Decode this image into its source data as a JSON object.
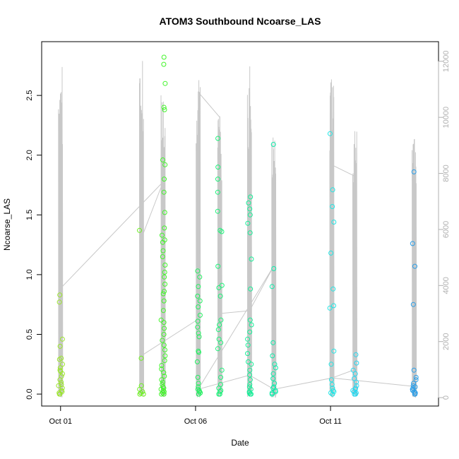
{
  "chart_data": {
    "type": "scatter",
    "title": "ATOM3 Southbound Ncoarse_LAS",
    "xlabel": "Date",
    "ylabel": "Ncoarse_LAS",
    "x_tick_labels": [
      "Oct 01",
      "Oct 06",
      "Oct 11"
    ],
    "x_ticks_day": [
      1,
      6,
      11
    ],
    "xlim_day": [
      0.3,
      15.0
    ],
    "ylim": [
      -0.1,
      2.95
    ],
    "y_ticks": [
      0.0,
      0.5,
      1.0,
      1.5,
      2.0,
      2.5
    ],
    "y_tick_labels": [
      "0.0",
      "0.5",
      "1.0",
      "1.5",
      "2.0",
      "2.5"
    ],
    "y2lim": [
      -300,
      12700
    ],
    "y2_ticks": [
      0,
      2000,
      4000,
      6000,
      8000,
      10000,
      12000
    ],
    "y2_tick_labels": [
      "0",
      "2000",
      "4000",
      "6000",
      "8000",
      "10000",
      "12000"
    ],
    "right_axis_color": "#b0b0b0",
    "grid": false,
    "colors": {
      "marker_scale": "time-colored hue from yellow-green to blue",
      "secondary_line": "#c8c8c8"
    },
    "marker_series": [
      {
        "day": 1.0,
        "color": "#9be62b",
        "values": [
          0.83,
          0.77,
          0.46,
          0.4,
          0.3,
          0.29,
          0.25,
          0.22,
          0.2,
          0.19,
          0.17,
          0.15,
          0.12,
          0.1,
          0.08,
          0.07,
          0.05,
          0.03,
          0.02,
          0.01,
          0.0,
          0.0
        ]
      },
      {
        "day": 4.0,
        "color": "#6cf01f",
        "values": [
          1.37,
          0.3,
          0.07,
          0.04,
          0.02,
          0.01,
          0.0,
          0.0
        ]
      },
      {
        "day": 4.8,
        "color": "#42f52a",
        "values": [
          2.82,
          2.76,
          2.6,
          2.4,
          2.38,
          1.96,
          1.92,
          1.8,
          1.69,
          1.52,
          1.39,
          1.33,
          1.29,
          1.27,
          1.2,
          1.15,
          1.08,
          1.02,
          0.98,
          0.92,
          0.86,
          0.84,
          0.78,
          0.7,
          0.62,
          0.6,
          0.55,
          0.5,
          0.45,
          0.41,
          0.37,
          0.32,
          0.28,
          0.24,
          0.21,
          0.18,
          0.15,
          0.12,
          0.1,
          0.08,
          0.06,
          0.05,
          0.04,
          0.03,
          0.02,
          0.01,
          0.0,
          0.0
        ]
      },
      {
        "day": 6.1,
        "color": "#22f060",
        "values": [
          1.03,
          0.98,
          0.9,
          0.82,
          0.78,
          0.73,
          0.66,
          0.61,
          0.56,
          0.51,
          0.48,
          0.36,
          0.35,
          0.27,
          0.14,
          0.09,
          0.06,
          0.04,
          0.03,
          0.02,
          0.01,
          0.0,
          0.0
        ]
      },
      {
        "day": 6.9,
        "color": "#1ef27a",
        "values": [
          2.14,
          1.9,
          1.8,
          1.69,
          1.53,
          1.37,
          1.36,
          1.07,
          0.91,
          0.89,
          0.82,
          0.62,
          0.58,
          0.54,
          0.46,
          0.43,
          0.38,
          0.2,
          0.14,
          0.08,
          0.05,
          0.03,
          0.02,
          0.0,
          0.0
        ]
      },
      {
        "day": 8.0,
        "color": "#15ef98",
        "values": [
          1.65,
          1.6,
          1.55,
          1.5,
          1.43,
          1.35,
          1.13,
          0.88,
          0.62,
          0.58,
          0.52,
          0.46,
          0.41,
          0.34,
          0.27,
          0.25,
          0.2,
          0.16,
          0.12,
          0.08,
          0.06,
          0.04,
          0.02,
          0.01,
          0.0,
          0.0
        ]
      },
      {
        "day": 8.9,
        "color": "#10ecab",
        "values": [
          2.09,
          1.05,
          0.9,
          0.43,
          0.32,
          0.25,
          0.22,
          0.17,
          0.13,
          0.09,
          0.06,
          0.05,
          0.03,
          0.02,
          0.01,
          0.0,
          0.0
        ]
      },
      {
        "day": 11.05,
        "color": "#22e6e6",
        "values": [
          2.18,
          1.71,
          1.57,
          1.44,
          1.18,
          0.88,
          0.74,
          0.72,
          0.36,
          0.25,
          0.12,
          0.08,
          0.05,
          0.03,
          0.02,
          0.01,
          0.0,
          0.0
        ]
      },
      {
        "day": 11.9,
        "color": "#28d8f0",
        "values": [
          0.33,
          0.26,
          0.2,
          0.17,
          0.13,
          0.1,
          0.07,
          0.05,
          0.04,
          0.03,
          0.02,
          0.01,
          0.0,
          0.0
        ]
      },
      {
        "day": 14.1,
        "color": "#2a9ee8",
        "values": [
          1.86,
          1.26,
          1.07,
          0.75,
          0.2,
          0.14,
          0.12,
          0.09,
          0.07,
          0.06,
          0.05,
          0.04,
          0.03,
          0.02,
          0.01,
          0.0,
          0.0
        ]
      }
    ],
    "secondary_series": {
      "name": "",
      "axis": "right",
      "bursts": [
        {
          "day": 1.0,
          "peak": 12000
        },
        {
          "day": 4.0,
          "peak": 12150
        },
        {
          "day": 4.8,
          "peak": 10900
        },
        {
          "day": 6.1,
          "peak": 11700
        },
        {
          "day": 6.9,
          "peak": 10600
        },
        {
          "day": 8.0,
          "peak": 11900
        },
        {
          "day": 8.9,
          "peak": 9300
        },
        {
          "day": 11.05,
          "peak": 11600
        },
        {
          "day": 11.9,
          "peak": 9600
        },
        {
          "day": 14.1,
          "peak": 9900
        }
      ],
      "connector_points": [
        {
          "day": 1.0,
          "value": 3900
        },
        {
          "day": 4.8,
          "value": 7700
        },
        {
          "day": 4.0,
          "value": 5700
        },
        {
          "day": 4.0,
          "value": 1500
        },
        {
          "day": 6.1,
          "value": 2800
        },
        {
          "day": 6.1,
          "value": 10900
        },
        {
          "day": 6.9,
          "value": 10000
        },
        {
          "day": 6.9,
          "value": 3000
        },
        {
          "day": 8.0,
          "value": 3100
        },
        {
          "day": 8.9,
          "value": 4700
        },
        {
          "day": 6.1,
          "value": 300
        },
        {
          "day": 8.0,
          "value": 800
        },
        {
          "day": 8.9,
          "value": 300
        },
        {
          "day": 11.05,
          "value": 700
        },
        {
          "day": 11.05,
          "value": 8300
        },
        {
          "day": 11.9,
          "value": 7900
        },
        {
          "day": 11.9,
          "value": 1000
        },
        {
          "day": 11.05,
          "value": 700
        },
        {
          "day": 14.1,
          "value": 400
        }
      ]
    }
  }
}
